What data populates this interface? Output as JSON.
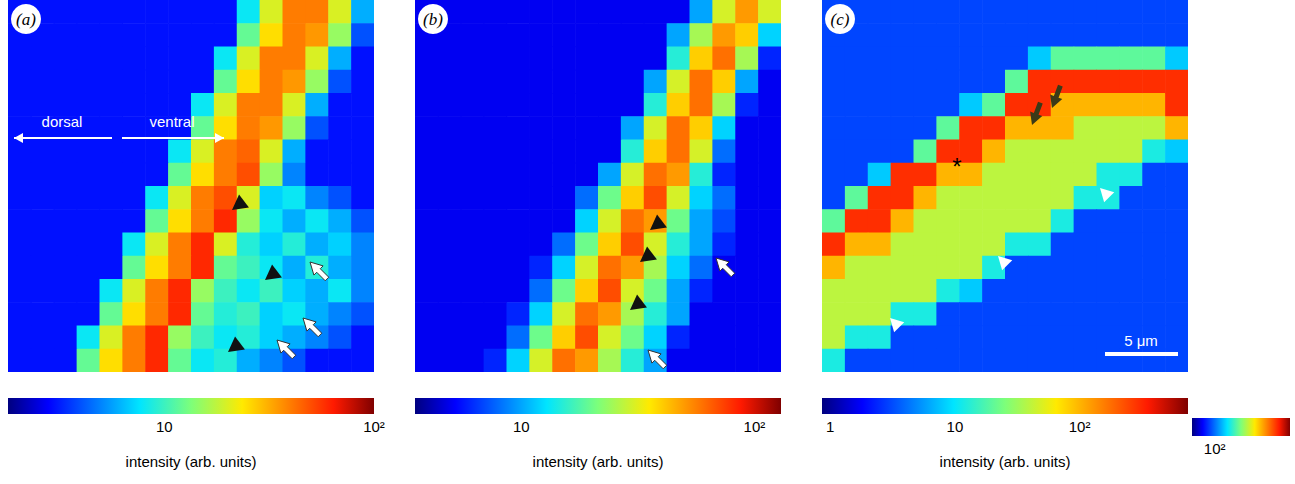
{
  "chart_data": [
    {
      "type": "heatmap",
      "title": "(a)",
      "log": true,
      "tick_labels": false,
      "annotations": [
        "dorsal",
        "ventral"
      ],
      "cells": [
        [
          3,
          3,
          3,
          3,
          3,
          3,
          3,
          3,
          3,
          3,
          8,
          20,
          40,
          40,
          20,
          6
        ],
        [
          3,
          3,
          3,
          3,
          3,
          3,
          3,
          3,
          3,
          3,
          12,
          25,
          40,
          35,
          15,
          4
        ],
        [
          3,
          3,
          3,
          3,
          3,
          3,
          3,
          3,
          3,
          8,
          20,
          40,
          40,
          20,
          6,
          3
        ],
        [
          3,
          3,
          3,
          3,
          3,
          3,
          3,
          3,
          3,
          12,
          25,
          40,
          35,
          15,
          4,
          3
        ],
        [
          3,
          3,
          3,
          3,
          3,
          3,
          3,
          3,
          8,
          20,
          40,
          40,
          20,
          6,
          3,
          3
        ],
        [
          3,
          3,
          3,
          3,
          3,
          3,
          3,
          3,
          12,
          25,
          40,
          35,
          15,
          4,
          3,
          3
        ],
        [
          3,
          3,
          3,
          3,
          3,
          3,
          3,
          8,
          20,
          40,
          45,
          20,
          6,
          3,
          3,
          3
        ],
        [
          3,
          3,
          3,
          3,
          3,
          3,
          3,
          12,
          25,
          40,
          50,
          15,
          5,
          3,
          3,
          3
        ],
        [
          3,
          3,
          3,
          3,
          3,
          3,
          8,
          20,
          40,
          50,
          20,
          7,
          8,
          5,
          4,
          3
        ],
        [
          3,
          3,
          3,
          3,
          3,
          3,
          12,
          25,
          40,
          60,
          15,
          8,
          6,
          8,
          6,
          4
        ],
        [
          3,
          3,
          3,
          3,
          3,
          8,
          20,
          40,
          60,
          20,
          9,
          7,
          9,
          6,
          7,
          5
        ],
        [
          3,
          3,
          3,
          3,
          3,
          12,
          25,
          40,
          60,
          12,
          10,
          8,
          6,
          9,
          6,
          5
        ],
        [
          3,
          3,
          3,
          3,
          8,
          20,
          40,
          60,
          15,
          10,
          8,
          10,
          7,
          6,
          8,
          5
        ],
        [
          3,
          3,
          3,
          3,
          12,
          25,
          40,
          60,
          12,
          9,
          10,
          7,
          8,
          6,
          5,
          4
        ],
        [
          3,
          3,
          3,
          8,
          20,
          40,
          60,
          15,
          10,
          8,
          9,
          7,
          6,
          5,
          4,
          3
        ],
        [
          3,
          3,
          3,
          12,
          25,
          40,
          60,
          12,
          8,
          9,
          6,
          5,
          4,
          3,
          3,
          3
        ]
      ],
      "colorbars": [
        {
          "label": "intensity (arb. units)",
          "range": [
            1.8,
            100
          ],
          "ticks": [
            10,
            {
              "value": 100,
              "label": "10²"
            }
          ]
        }
      ]
    },
    {
      "type": "heatmap",
      "title": "(b)",
      "log": true,
      "tick_labels": false,
      "cells": [
        [
          5,
          5,
          5,
          5,
          5,
          5,
          5,
          5,
          5,
          5,
          5,
          5,
          10,
          30,
          50,
          30
        ],
        [
          5,
          5,
          5,
          5,
          5,
          5,
          5,
          5,
          5,
          5,
          5,
          10,
          25,
          50,
          40,
          12
        ],
        [
          5,
          5,
          5,
          5,
          5,
          5,
          5,
          5,
          5,
          5,
          5,
          15,
          40,
          60,
          25,
          6
        ],
        [
          5,
          5,
          5,
          5,
          5,
          5,
          5,
          5,
          5,
          5,
          10,
          30,
          60,
          40,
          10,
          5
        ],
        [
          5,
          5,
          5,
          5,
          5,
          5,
          5,
          5,
          5,
          5,
          15,
          40,
          60,
          25,
          6,
          5
        ],
        [
          5,
          5,
          5,
          5,
          5,
          5,
          5,
          5,
          5,
          10,
          30,
          60,
          40,
          12,
          5,
          5
        ],
        [
          5,
          5,
          5,
          5,
          5,
          5,
          5,
          5,
          5,
          15,
          40,
          60,
          30,
          8,
          5,
          5
        ],
        [
          5,
          5,
          5,
          5,
          5,
          5,
          5,
          5,
          10,
          30,
          60,
          50,
          15,
          6,
          5,
          5
        ],
        [
          5,
          5,
          5,
          5,
          5,
          5,
          5,
          8,
          20,
          40,
          70,
          30,
          12,
          8,
          5,
          5
        ],
        [
          5,
          5,
          5,
          5,
          5,
          5,
          5,
          12,
          30,
          60,
          50,
          20,
          10,
          7,
          5,
          5
        ],
        [
          5,
          5,
          5,
          5,
          5,
          5,
          8,
          20,
          40,
          70,
          30,
          15,
          10,
          6,
          5,
          5
        ],
        [
          5,
          5,
          5,
          5,
          5,
          6,
          12,
          30,
          60,
          50,
          25,
          12,
          8,
          5,
          5,
          5
        ],
        [
          5,
          5,
          5,
          5,
          5,
          8,
          20,
          40,
          70,
          30,
          20,
          10,
          6,
          5,
          5,
          5
        ],
        [
          5,
          5,
          5,
          5,
          6,
          12,
          30,
          60,
          50,
          25,
          15,
          10,
          5,
          5,
          5,
          5
        ],
        [
          5,
          5,
          5,
          5,
          8,
          20,
          40,
          70,
          30,
          20,
          12,
          6,
          5,
          5,
          5,
          5
        ],
        [
          5,
          5,
          5,
          6,
          12,
          30,
          60,
          50,
          25,
          15,
          10,
          5,
          5,
          5,
          5,
          5
        ]
      ],
      "colorbars": [
        {
          "label": "intensity (arb. units)",
          "range": [
            3.5,
            130
          ],
          "ticks": [
            10,
            {
              "value": 100,
              "label": "10²"
            }
          ]
        }
      ]
    },
    {
      "type": "heatmap",
      "title": "(c)",
      "log": true,
      "tick_labels": false,
      "annotations": [
        "*",
        "5 μm"
      ],
      "cells": [
        [
          3,
          3,
          3,
          3,
          3,
          3,
          3,
          3,
          3,
          3,
          3,
          3,
          3,
          3,
          3,
          3
        ],
        [
          3,
          3,
          3,
          3,
          3,
          3,
          3,
          3,
          3,
          3,
          3,
          3,
          3,
          3,
          3,
          3
        ],
        [
          3,
          3,
          3,
          3,
          3,
          3,
          3,
          3,
          3,
          8,
          20,
          20,
          20,
          20,
          20,
          8
        ],
        [
          3,
          3,
          3,
          3,
          3,
          3,
          3,
          3,
          20,
          300,
          300,
          300,
          300,
          300,
          300,
          300
        ],
        [
          3,
          3,
          3,
          3,
          3,
          3,
          8,
          20,
          300,
          300,
          100,
          100,
          100,
          100,
          100,
          300
        ],
        [
          3,
          3,
          3,
          3,
          3,
          20,
          300,
          300,
          100,
          100,
          100,
          40,
          40,
          40,
          40,
          100
        ],
        [
          3,
          3,
          3,
          3,
          20,
          300,
          300,
          100,
          40,
          40,
          40,
          40,
          40,
          40,
          12,
          8
        ],
        [
          3,
          3,
          8,
          300,
          300,
          100,
          100,
          40,
          40,
          40,
          40,
          40,
          12,
          12,
          3,
          3
        ],
        [
          3,
          20,
          300,
          300,
          100,
          40,
          40,
          40,
          40,
          40,
          40,
          12,
          12,
          3,
          3,
          3
        ],
        [
          20,
          300,
          300,
          100,
          40,
          40,
          40,
          40,
          40,
          40,
          12,
          3,
          3,
          3,
          3,
          3
        ],
        [
          300,
          100,
          100,
          40,
          40,
          40,
          40,
          40,
          12,
          12,
          3,
          3,
          3,
          3,
          3,
          3
        ],
        [
          100,
          40,
          40,
          40,
          40,
          40,
          40,
          12,
          3,
          3,
          3,
          3,
          3,
          3,
          3,
          3
        ],
        [
          40,
          40,
          40,
          40,
          40,
          12,
          8,
          3,
          3,
          3,
          3,
          3,
          3,
          3,
          3,
          3
        ],
        [
          40,
          40,
          40,
          12,
          12,
          3,
          3,
          3,
          3,
          3,
          3,
          3,
          3,
          3,
          3,
          3
        ],
        [
          40,
          12,
          12,
          3,
          3,
          3,
          3,
          3,
          3,
          3,
          3,
          3,
          3,
          3,
          3,
          3
        ],
        [
          12,
          3,
          3,
          3,
          3,
          3,
          3,
          3,
          3,
          3,
          3,
          3,
          3,
          3,
          3,
          3
        ]
      ],
      "colorbars": [
        {
          "label": "intensity (arb. units)",
          "range": [
            0.86,
            740
          ],
          "ticks": [
            1,
            10,
            {
              "value": 100,
              "label": "10²"
            }
          ]
        },
        {
          "range": [
            50,
            1000
          ],
          "ticks": [
            {
              "value": 100,
              "label": "10²"
            }
          ]
        }
      ]
    }
  ]
}
